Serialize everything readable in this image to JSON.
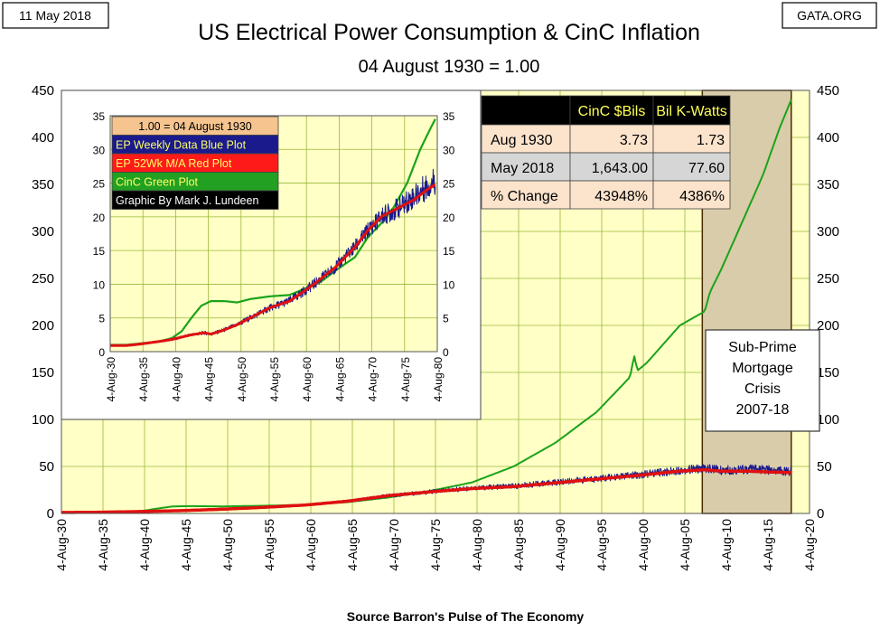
{
  "header": {
    "date": "11 May 2018",
    "source_badge": "GATA.ORG",
    "title": "US Electrical Power Consumption & CinC Inflation",
    "subtitle": "04 August 1930 = 1.00"
  },
  "footer": {
    "source": "Source Barron's Pulse of The Economy"
  },
  "colors": {
    "plot_bg": "#ffffc6",
    "grid": "#9bb83a",
    "cinc": "#1aa31a",
    "weekly": "#1a1a8c",
    "ma52": "#e01010",
    "crisis_fill": "#d9ccaa",
    "crisis_border": "#4a2a00"
  },
  "annotation": {
    "lines": [
      "Sub-Prime",
      "Mortgage",
      "Crisis",
      "2007-18"
    ]
  },
  "table": {
    "header": [
      "",
      "CinC $Bils",
      "Bil K-Watts"
    ],
    "rows": [
      [
        "Aug 1930",
        "3.73",
        "1.73"
      ],
      [
        "May 2018",
        "1,643.00",
        "77.60"
      ],
      [
        "% Change",
        "43948%",
        "4386%"
      ]
    ]
  },
  "inset": {
    "legend": [
      {
        "text": "1.00 = 04 August 1930",
        "bg": "#f5c48f",
        "fg": "#000000"
      },
      {
        "text": "EP Weekly Data    Blue Plot",
        "bg": "#1a1a8c",
        "fg": "#ffff66"
      },
      {
        "text": "EP 52Wk M/A        Red Plot",
        "bg": "#ff1a1a",
        "fg": "#ffff66"
      },
      {
        "text": "CinC                    Green Plot",
        "bg": "#22a022",
        "fg": "#ffff66"
      },
      {
        "text": "Graphic By Mark J. Lundeen",
        "bg": "#000000",
        "fg": "#ffffff"
      }
    ]
  },
  "chart_data": [
    {
      "type": "line",
      "title": "US Electrical Power Consumption & CinC Inflation",
      "subtitle": "04 August 1930 = 1.00",
      "ylim": [
        0,
        450
      ],
      "y_ticks": [
        0,
        50,
        100,
        150,
        200,
        250,
        300,
        350,
        400,
        450
      ],
      "xlim": [
        1930.6,
        2020.6
      ],
      "x_tick_labels": [
        "4-Aug-30",
        "4-Aug-35",
        "4-Aug-40",
        "4-Aug-45",
        "4-Aug-50",
        "4-Aug-55",
        "4-Aug-60",
        "4-Aug-65",
        "4-Aug-70",
        "4-Aug-75",
        "4-Aug-80",
        "4-Aug-85",
        "4-Aug-90",
        "4-Aug-95",
        "4-Aug-00",
        "4-Aug-05",
        "4-Aug-10",
        "4-Aug-15",
        "4-Aug-20"
      ],
      "grid": true,
      "shaded_region": {
        "x": [
          2007.7,
          2018.4
        ],
        "label": "Sub-Prime Mortgage Crisis 2007-18"
      },
      "series": [
        {
          "name": "CinC",
          "color": "#1aa31a",
          "x": [
            1930.6,
            1935,
            1940,
            1942,
            1944,
            1946,
            1950,
            1955,
            1960,
            1965,
            1970,
            1975,
            1980,
            1985,
            1990,
            1995,
            1999,
            1999.5,
            1999.9,
            2001,
            2005,
            2008,
            2008.6,
            2010,
            2013,
            2015,
            2017,
            2018.4
          ],
          "y": [
            1.0,
            1.5,
            2.2,
            5,
            7.5,
            7.8,
            7.5,
            8.2,
            9.2,
            12,
            17,
            24,
            33,
            50,
            75,
            108,
            145,
            168,
            152,
            160,
            200,
            215,
            235,
            260,
            320,
            360,
            410,
            440
          ]
        },
        {
          "name": "EP Weekly Data",
          "color": "#1a1a8c",
          "x": [
            1930.6,
            1935,
            1940,
            1945,
            1950,
            1955,
            1960,
            1965,
            1970,
            1975,
            1980,
            1985,
            1990,
            1995,
            2000,
            2005,
            2008,
            2010,
            2013,
            2016,
            2018.4
          ],
          "y": [
            1.0,
            1.3,
            2.0,
            3.0,
            4.5,
            6.5,
            9,
            13,
            19,
            23,
            27,
            29,
            33,
            37,
            41,
            46,
            48,
            46,
            47,
            46,
            45
          ],
          "amplitude": [
            0.2,
            0.2,
            0.3,
            0.4,
            0.6,
            0.9,
            1.2,
            1.6,
            2.2,
            2.6,
            3,
            3.2,
            3.6,
            4,
            4.4,
            5,
            5.5,
            5.5,
            5.5,
            5.5,
            5.5
          ]
        },
        {
          "name": "EP 52Wk M/A",
          "color": "#e01010",
          "x": [
            1930.6,
            1935,
            1940,
            1945,
            1950,
            1955,
            1960,
            1965,
            1970,
            1975,
            1980,
            1985,
            1990,
            1995,
            2000,
            2005,
            2008,
            2010,
            2013,
            2016,
            2018.4
          ],
          "y": [
            1.0,
            1.3,
            2.0,
            3.0,
            4.5,
            6.5,
            9,
            13,
            19,
            23,
            26.5,
            28.5,
            32.5,
            36.5,
            40.5,
            45,
            46.5,
            45,
            45,
            44,
            43.5
          ]
        }
      ]
    },
    {
      "type": "line",
      "title": "",
      "ylim": [
        0,
        35
      ],
      "y_ticks": [
        0,
        5,
        10,
        15,
        20,
        25,
        30,
        35
      ],
      "xlim": [
        1930.6,
        1980.6
      ],
      "x_tick_labels": [
        "4-Aug-30",
        "4-Aug-35",
        "4-Aug-40",
        "4-Aug-45",
        "4-Aug-50",
        "4-Aug-55",
        "4-Aug-60",
        "4-Aug-65",
        "4-Aug-70",
        "4-Aug-75",
        "4-Aug-80"
      ],
      "grid": true,
      "series": [
        {
          "name": "CinC",
          "color": "#1aa31a",
          "x": [
            1930.6,
            1933,
            1935,
            1938,
            1940,
            1941.5,
            1943,
            1944.5,
            1946,
            1948,
            1950,
            1952,
            1955,
            1958,
            1960,
            1963,
            1965,
            1968,
            1970,
            1972,
            1974,
            1976,
            1978,
            1979.5,
            1980.3
          ],
          "y": [
            1.0,
            1.0,
            1.2,
            1.5,
            2.0,
            3.0,
            5.0,
            6.8,
            7.5,
            7.5,
            7.3,
            7.8,
            8.2,
            8.4,
            9.2,
            10.5,
            12,
            14,
            17,
            19,
            21.5,
            25,
            30,
            33,
            34.5
          ]
        },
        {
          "name": "EP Weekly Data",
          "color": "#1a1a8c",
          "x": [
            1930.6,
            1933,
            1935,
            1938,
            1940,
            1943,
            1945,
            1946,
            1948,
            1950,
            1952,
            1955,
            1958,
            1960,
            1962,
            1965,
            1968,
            1970,
            1972,
            1975,
            1977,
            1979,
            1980.3
          ],
          "y": [
            0.9,
            0.9,
            1.1,
            1.5,
            1.8,
            2.5,
            2.8,
            2.6,
            3.2,
            4.0,
            5.0,
            6.5,
            7.5,
            8.8,
            10.2,
            12.5,
            15.5,
            18,
            20,
            21.5,
            23,
            24.5,
            25.5
          ],
          "amplitude": [
            0.1,
            0.1,
            0.1,
            0.15,
            0.2,
            0.25,
            0.3,
            0.3,
            0.35,
            0.4,
            0.5,
            0.6,
            0.7,
            0.8,
            0.9,
            1.0,
            1.2,
            1.4,
            1.6,
            1.8,
            2.0,
            2.3,
            2.5
          ]
        },
        {
          "name": "EP 52Wk M/A",
          "color": "#e01010",
          "x": [
            1930.6,
            1933,
            1935,
            1938,
            1940,
            1943,
            1945,
            1946,
            1948,
            1950,
            1952,
            1955,
            1958,
            1960,
            1962,
            1965,
            1968,
            1970,
            1972,
            1975,
            1977,
            1979,
            1980.3
          ],
          "y": [
            0.9,
            0.9,
            1.1,
            1.5,
            1.8,
            2.5,
            2.8,
            2.6,
            3.2,
            4.0,
            5.0,
            6.5,
            7.5,
            8.8,
            10.2,
            12.5,
            15.5,
            18,
            20,
            21.5,
            22.5,
            24,
            24.8
          ]
        }
      ]
    }
  ]
}
